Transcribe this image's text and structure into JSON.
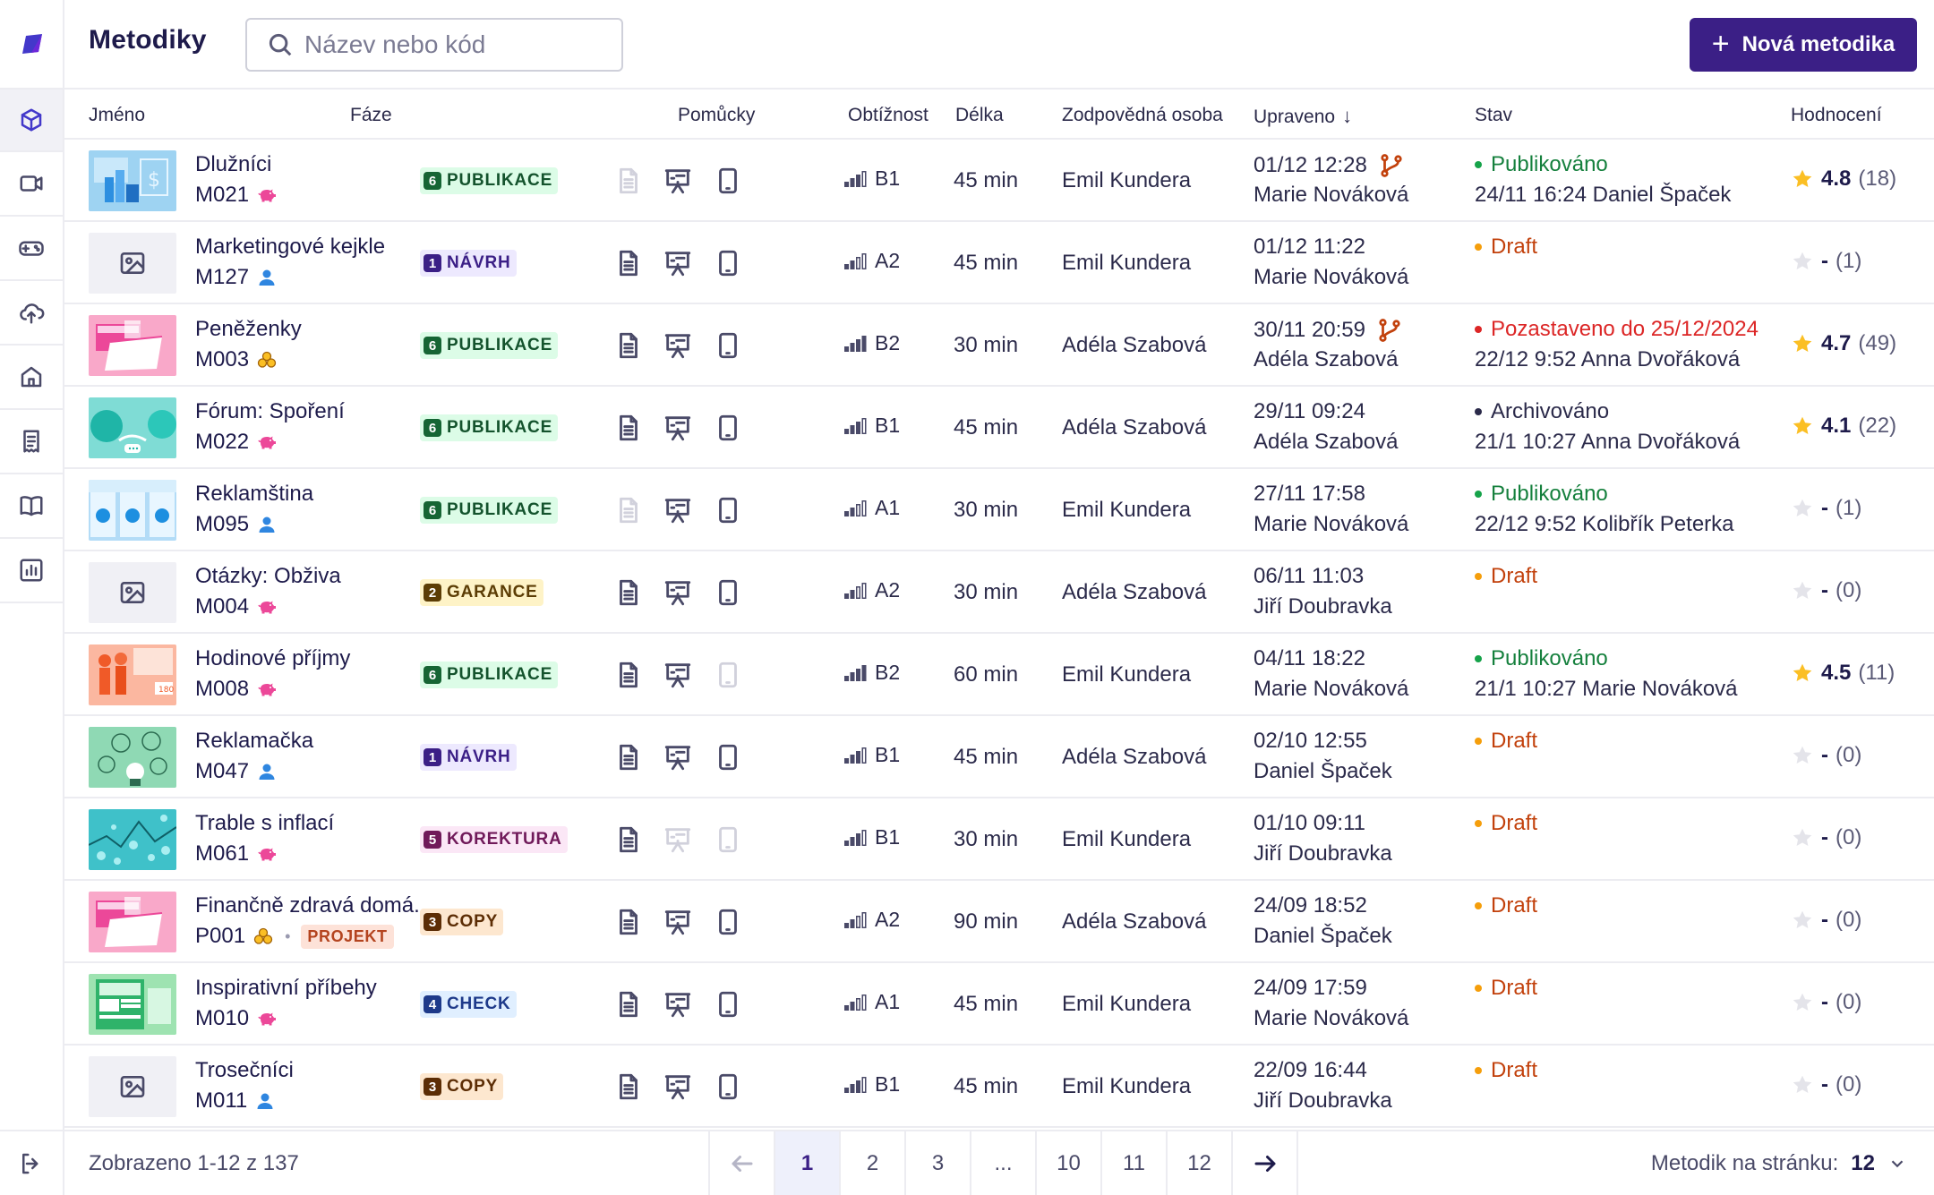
{
  "header": {
    "title": "Metodiky",
    "search_placeholder": "Název nebo kód",
    "new_button": "Nová metodika"
  },
  "sidebar": {
    "items": [
      {
        "icon": "cube-icon",
        "active": true
      },
      {
        "icon": "video-icon",
        "active": false
      },
      {
        "icon": "gamepad-icon",
        "active": false
      },
      {
        "icon": "cloud-upload-icon",
        "active": false
      },
      {
        "icon": "home-icon",
        "active": false
      },
      {
        "icon": "receipt-icon",
        "active": false
      },
      {
        "icon": "book-icon",
        "active": false
      },
      {
        "icon": "chart-icon",
        "active": false
      }
    ],
    "logout_icon": "logout-icon"
  },
  "columns": {
    "name": "Jméno",
    "phase": "Fáze",
    "tools": "Pomůcky",
    "difficulty": "Obtížnost",
    "length": "Délka",
    "owner": "Zodpovědná osoba",
    "updated": "Upraveno",
    "status": "Stav",
    "rating": "Hodnocení"
  },
  "rows": [
    {
      "thumb": "blue-chart",
      "name": "Dlužníci",
      "code": "M021",
      "type_icon": "piggy-icon",
      "phase_num": "6",
      "phase": "PUBLIKACE",
      "phase_color": "green",
      "tools": [
        false,
        true,
        true
      ],
      "bars": 2,
      "level": "B1",
      "length": "45 min",
      "owner": "Emil Kundera",
      "updated_time": "01/12 12:28",
      "branch": true,
      "updated_by": "Marie Nováková",
      "status": "Publikováno",
      "status_color": "green",
      "status_sub": "24/11 16:24  Daniel Špaček",
      "rated": true,
      "rating": "4.8",
      "rating_count": "(18)"
    },
    {
      "thumb": "placeholder",
      "name": "Marketingové kejkle",
      "code": "M127",
      "type_icon": "person-icon",
      "phase_num": "1",
      "phase": "NÁVRH",
      "phase_color": "purple",
      "tools": [
        true,
        true,
        true
      ],
      "bars": 1,
      "level": "A2",
      "length": "45 min",
      "owner": "Emil Kundera",
      "updated_time": "01/12 11:22",
      "branch": false,
      "updated_by": "Marie Nováková",
      "status": "Draft",
      "status_color": "orange",
      "status_sub": "",
      "rated": false,
      "rating": "-",
      "rating_count": "(1)"
    },
    {
      "thumb": "pink-wallet",
      "name": "Peněženky",
      "code": "M003",
      "type_icon": "coins-icon",
      "phase_num": "6",
      "phase": "PUBLIKACE",
      "phase_color": "green",
      "tools": [
        true,
        true,
        true
      ],
      "bars": 3,
      "level": "B2",
      "length": "30 min",
      "owner": "Adéla Szabová",
      "updated_time": "30/11 20:59",
      "branch": true,
      "updated_by": "Adéla Szabová",
      "status": "Pozastaveno do 25/12/2024",
      "status_color": "red",
      "status_sub": "22/12 9:52 Anna Dvořáková",
      "rated": true,
      "rating": "4.7",
      "rating_count": "(49)"
    },
    {
      "thumb": "teal-faces",
      "name": "Fórum: Spoření",
      "code": "M022",
      "type_icon": "piggy-icon",
      "phase_num": "6",
      "phase": "PUBLIKACE",
      "phase_color": "green",
      "tools": [
        true,
        true,
        true
      ],
      "bars": 2,
      "level": "B1",
      "length": "45 min",
      "owner": "Adéla Szabová",
      "updated_time": "29/11 09:24",
      "branch": false,
      "updated_by": "Adéla Szabová",
      "status": "Archivováno",
      "status_color": "gray",
      "status_sub": "21/1 10:27 Anna Dvořáková",
      "rated": true,
      "rating": "4.1",
      "rating_count": "(22)"
    },
    {
      "thumb": "blue-cups",
      "name": "Reklamština",
      "code": "M095",
      "type_icon": "person-icon",
      "phase_num": "6",
      "phase": "PUBLIKACE",
      "phase_color": "green",
      "tools": [
        false,
        true,
        true
      ],
      "bars": 1,
      "level": "A1",
      "length": "30 min",
      "owner": "Emil Kundera",
      "updated_time": "27/11 17:58",
      "branch": false,
      "updated_by": "Marie Nováková",
      "status": "Publikováno",
      "status_color": "green",
      "status_sub": "22/12 9:52 Kolibřík Peterka",
      "rated": false,
      "rating": "-",
      "rating_count": "(1)"
    },
    {
      "thumb": "placeholder",
      "name": "Otázky: Obživa",
      "code": "M004",
      "type_icon": "piggy-icon",
      "phase_num": "2",
      "phase": "GARANCE",
      "phase_color": "yellow",
      "tools": [
        true,
        true,
        true
      ],
      "bars": 1,
      "level": "A2",
      "length": "30 min",
      "owner": "Adéla Szabová",
      "updated_time": "06/11 11:03",
      "branch": false,
      "updated_by": "Jiří Doubravka",
      "status": "Draft",
      "status_color": "orange",
      "status_sub": "",
      "rated": false,
      "rating": "-",
      "rating_count": "(0)"
    },
    {
      "thumb": "orange-people",
      "name": "Hodinové příjmy",
      "code": "M008",
      "type_icon": "piggy-icon",
      "phase_num": "6",
      "phase": "PUBLIKACE",
      "phase_color": "green",
      "tools": [
        true,
        true,
        false
      ],
      "bars": 3,
      "level": "B2",
      "length": "60 min",
      "owner": "Emil Kundera",
      "updated_time": "04/11 18:22",
      "branch": false,
      "updated_by": "Marie Nováková",
      "status": "Publikováno",
      "status_color": "green",
      "status_sub": "21/1 10:27 Marie Nováková",
      "rated": true,
      "rating": "4.5",
      "rating_count": "(11)"
    },
    {
      "thumb": "green-bubbles",
      "name": "Reklamačka",
      "code": "M047",
      "type_icon": "person-icon",
      "phase_num": "1",
      "phase": "NÁVRH",
      "phase_color": "purple",
      "tools": [
        true,
        true,
        true
      ],
      "bars": 2,
      "level": "B1",
      "length": "45 min",
      "owner": "Adéla Szabová",
      "updated_time": "02/10 12:55",
      "branch": false,
      "updated_by": "Daniel Špaček",
      "status": "Draft",
      "status_color": "orange",
      "status_sub": "",
      "rated": false,
      "rating": "-",
      "rating_count": "(0)"
    },
    {
      "thumb": "teal-coins",
      "name": "Trable s inflací",
      "code": "M061",
      "type_icon": "piggy-icon",
      "phase_num": "5",
      "phase": "KOREKTURA",
      "phase_color": "pink",
      "tools": [
        true,
        false,
        false
      ],
      "bars": 2,
      "level": "B1",
      "length": "30 min",
      "owner": "Emil Kundera",
      "updated_time": "01/10 09:11",
      "branch": false,
      "updated_by": "Jiří Doubravka",
      "status": "Draft",
      "status_color": "orange",
      "status_sub": "",
      "rated": false,
      "rating": "-",
      "rating_count": "(0)"
    },
    {
      "thumb": "pink-wallet",
      "name": "Finančně zdravá domá...",
      "code": "P001",
      "type_icon": "coins-icon",
      "badge": "PROJEKT",
      "phase_num": "3",
      "phase": "COPY",
      "phase_color": "orange",
      "tools": [
        true,
        true,
        true
      ],
      "bars": 1,
      "level": "A2",
      "length": "90 min",
      "owner": "Adéla Szabová",
      "updated_time": "24/09 18:52",
      "branch": false,
      "updated_by": "Daniel Špaček",
      "status": "Draft",
      "status_color": "orange",
      "status_sub": "",
      "rated": false,
      "rating": "-",
      "rating_count": "(0)"
    },
    {
      "thumb": "green-doc",
      "name": "Inspirativní příbehy",
      "code": "M010",
      "type_icon": "piggy-icon",
      "phase_num": "4",
      "phase": "CHECK",
      "phase_color": "blue",
      "tools": [
        true,
        true,
        true
      ],
      "bars": 1,
      "level": "A1",
      "length": "45 min",
      "owner": "Emil Kundera",
      "updated_time": "24/09 17:59",
      "branch": false,
      "updated_by": "Marie Nováková",
      "status": "Draft",
      "status_color": "orange",
      "status_sub": "",
      "rated": false,
      "rating": "-",
      "rating_count": "(0)"
    },
    {
      "thumb": "placeholder",
      "name": "Trosečníci",
      "code": "M011",
      "type_icon": "person-icon",
      "phase_num": "3",
      "phase": "COPY",
      "phase_color": "orange",
      "tools": [
        true,
        true,
        true
      ],
      "bars": 2,
      "level": "B1",
      "length": "45 min",
      "owner": "Emil Kundera",
      "updated_time": "22/09 16:44",
      "branch": false,
      "updated_by": "Jiří Doubravka",
      "status": "Draft",
      "status_color": "orange",
      "status_sub": "",
      "rated": false,
      "rating": "-",
      "rating_count": "(0)"
    }
  ],
  "footer": {
    "showing": "Zobrazeno 1-12 z 137",
    "pages": [
      "1",
      "2",
      "3",
      "...",
      "10",
      "11",
      "12"
    ],
    "current_page": "1",
    "per_page_label": "Metodik na stránku:",
    "per_page_value": "12"
  },
  "colors": {
    "accent": "#3b1f86",
    "star": "#fbbf24",
    "branch": "#c2410c"
  }
}
